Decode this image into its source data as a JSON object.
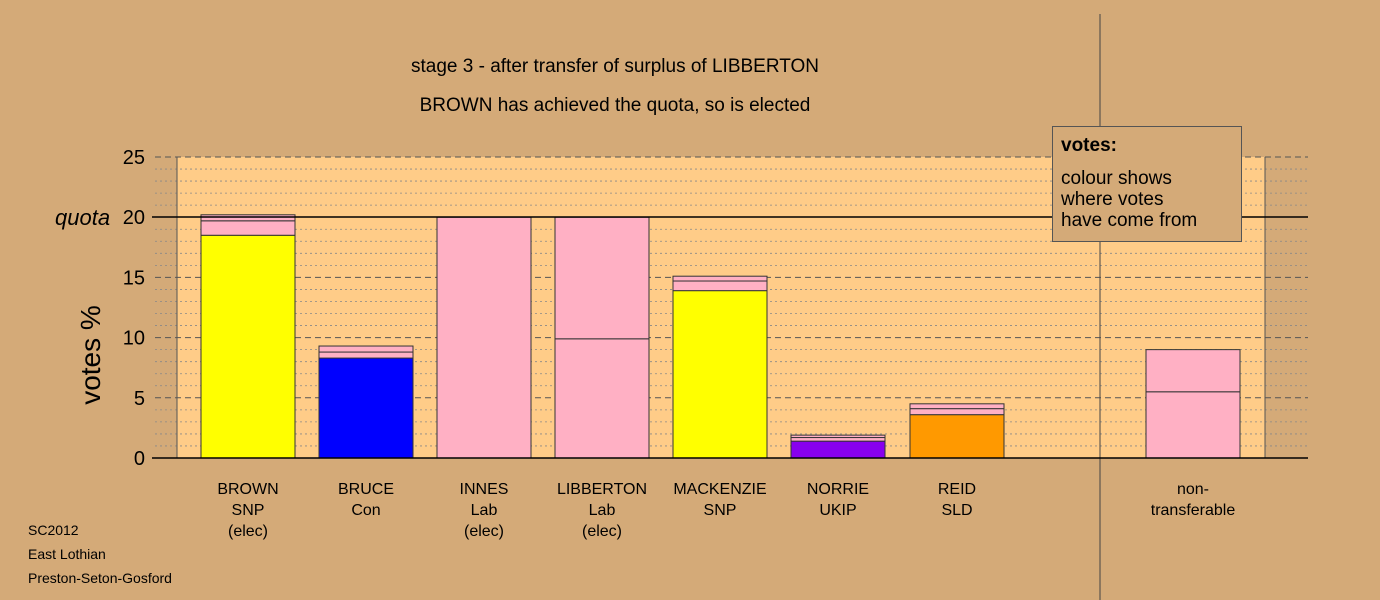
{
  "chart_data": {
    "type": "bar",
    "stacked": true,
    "title": "stage 3 - after transfer of surplus of LIBBERTON",
    "subtitle": "BROWN has achieved the quota, so is elected",
    "ylabel": "votes %",
    "ylim": [
      0,
      25
    ],
    "yticks": [
      0,
      5,
      10,
      15,
      20,
      25
    ],
    "quota": 20,
    "quota_label": "quota",
    "grid": true,
    "categories": [
      {
        "lines": [
          "BROWN",
          "SNP",
          "(elec)"
        ]
      },
      {
        "lines": [
          "BRUCE",
          "Con"
        ]
      },
      {
        "lines": [
          "INNES",
          "Lab",
          "(elec)"
        ]
      },
      {
        "lines": [
          "LIBBERTON",
          "Lab",
          "(elec)"
        ]
      },
      {
        "lines": [
          "MACKENZIE",
          "SNP"
        ]
      },
      {
        "lines": [
          "NORRIE",
          "UKIP"
        ]
      },
      {
        "lines": [
          "REID",
          "SLD"
        ]
      },
      {
        "lines": [
          "non-",
          "transferable"
        ]
      }
    ],
    "bars": [
      {
        "segments": [
          {
            "value": 18.5,
            "color": "#ffff00"
          },
          {
            "value": 1.2,
            "color": "#ffb0c4"
          },
          {
            "value": 0.5,
            "color": "#ffb0c4"
          }
        ]
      },
      {
        "segments": [
          {
            "value": 8.3,
            "color": "#0000ff"
          },
          {
            "value": 0.5,
            "color": "#ffb0c4"
          },
          {
            "value": 0.5,
            "color": "#ffb0c4"
          }
        ]
      },
      {
        "segments": [
          {
            "value": 20.0,
            "color": "#ffb0c4"
          }
        ]
      },
      {
        "segments": [
          {
            "value": 9.9,
            "color": "#ffb0c4"
          },
          {
            "value": 10.1,
            "color": "#ffb0c4"
          }
        ]
      },
      {
        "segments": [
          {
            "value": 13.9,
            "color": "#ffff00"
          },
          {
            "value": 0.8,
            "color": "#ffb0c4"
          },
          {
            "value": 0.4,
            "color": "#ffb0c4"
          }
        ]
      },
      {
        "segments": [
          {
            "value": 1.4,
            "color": "#8800ee"
          },
          {
            "value": 0.3,
            "color": "#ffb0c4"
          },
          {
            "value": 0.2,
            "color": "#ffb0c4"
          }
        ]
      },
      {
        "segments": [
          {
            "value": 3.6,
            "color": "#ff9900"
          },
          {
            "value": 0.5,
            "color": "#ffb0c4"
          },
          {
            "value": 0.4,
            "color": "#ffb0c4"
          }
        ]
      },
      {
        "segments": [
          {
            "value": 5.5,
            "color": "#ffb0c4"
          },
          {
            "value": 3.5,
            "color": "#ffb0c4"
          }
        ]
      }
    ],
    "colors": {
      "background": "#d4aa78",
      "plot_area": "#ffcc88",
      "SNP": "#ffff00",
      "Con": "#0000ff",
      "Lab": "#ffb0c4",
      "UKIP": "#8800ee",
      "SLD": "#ff9900"
    }
  },
  "legend": {
    "title": "votes:",
    "lines": [
      "colour shows",
      "where votes",
      "have come from"
    ]
  },
  "footer": {
    "line1": "SC2012",
    "line2": "East Lothian",
    "line3": "Preston-Seton-Gosford"
  }
}
